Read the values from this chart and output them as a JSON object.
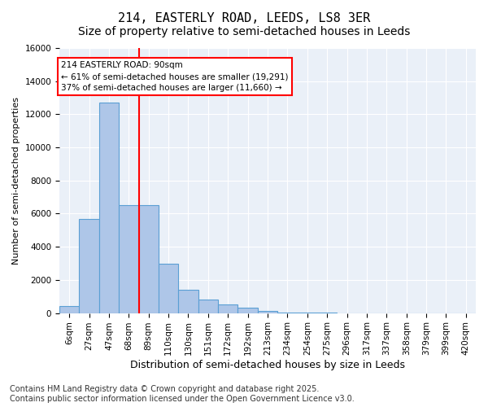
{
  "title": "214, EASTERLY ROAD, LEEDS, LS8 3ER",
  "subtitle": "Size of property relative to semi-detached houses in Leeds",
  "xlabel": "Distribution of semi-detached houses by size in Leeds",
  "ylabel": "Number of semi-detached properties",
  "bin_labels": [
    "6sqm",
    "27sqm",
    "47sqm",
    "68sqm",
    "89sqm",
    "110sqm",
    "130sqm",
    "151sqm",
    "172sqm",
    "192sqm",
    "213sqm",
    "234sqm",
    "254sqm",
    "275sqm",
    "296sqm",
    "317sqm",
    "337sqm",
    "358sqm",
    "379sqm",
    "399sqm",
    "420sqm"
  ],
  "bar_values": [
    400,
    5700,
    12700,
    6500,
    6500,
    3000,
    1400,
    800,
    500,
    300,
    150,
    50,
    20,
    5,
    2,
    1,
    0,
    0,
    0,
    0,
    0
  ],
  "bar_color": "#aec6e8",
  "bar_edge_color": "#5a9fd4",
  "vline_color": "red",
  "vline_pos": 3.5,
  "annotation_text": "214 EASTERLY ROAD: 90sqm\n← 61% of semi-detached houses are smaller (19,291)\n37% of semi-detached houses are larger (11,660) →",
  "annotation_box_color": "white",
  "annotation_box_edge": "red",
  "ylim": [
    0,
    16000
  ],
  "yticks": [
    0,
    2000,
    4000,
    6000,
    8000,
    10000,
    12000,
    14000,
    16000
  ],
  "footer": "Contains HM Land Registry data © Crown copyright and database right 2025.\nContains public sector information licensed under the Open Government Licence v3.0.",
  "plot_bg_color": "#eaf0f8",
  "title_fontsize": 11,
  "subtitle_fontsize": 10,
  "tick_fontsize": 7.5,
  "footer_fontsize": 7
}
